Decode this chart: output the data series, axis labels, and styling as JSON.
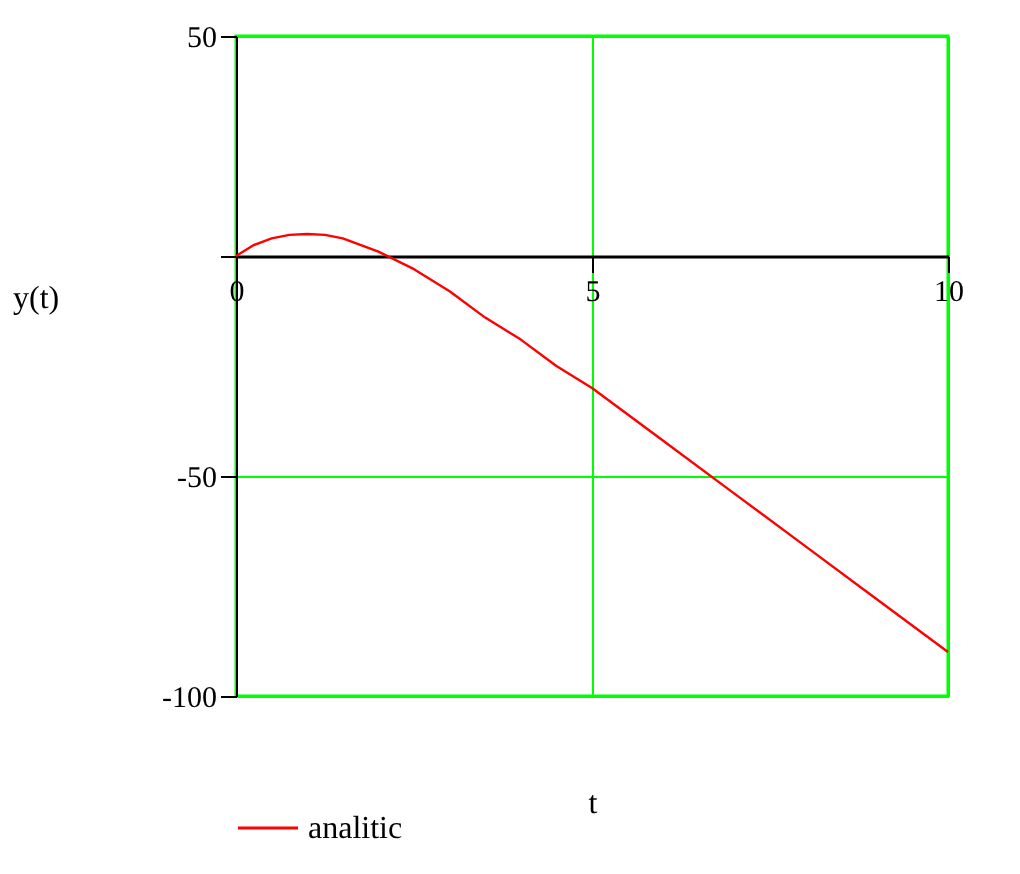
{
  "chart_data": {
    "type": "line",
    "xlabel": "t",
    "ylabel": "y(t)",
    "x": [
      0,
      0.25,
      0.5,
      0.75,
      1,
      1.25,
      1.5,
      2,
      2.5,
      3,
      3.5,
      4,
      4.5,
      5,
      6,
      7,
      8,
      9,
      10
    ],
    "series": [
      {
        "name": "analitic",
        "color": "#ff0000",
        "values": [
          0,
          2.5,
          4,
          4.8,
          5,
          4.8,
          4,
          1,
          -3,
          -8,
          -14,
          -19,
          -25,
          -30,
          -42,
          -54,
          -66,
          -78,
          -90
        ]
      }
    ],
    "xlim": [
      0,
      10
    ],
    "ylim": [
      -100,
      50
    ],
    "xticks": [
      0,
      5,
      10
    ],
    "yticks": [
      50,
      {
        "value": 0,
        "label": null
      },
      -50,
      -100
    ],
    "grid": true,
    "legend": "bottom",
    "marker": "none",
    "line_style": "solid"
  }
}
